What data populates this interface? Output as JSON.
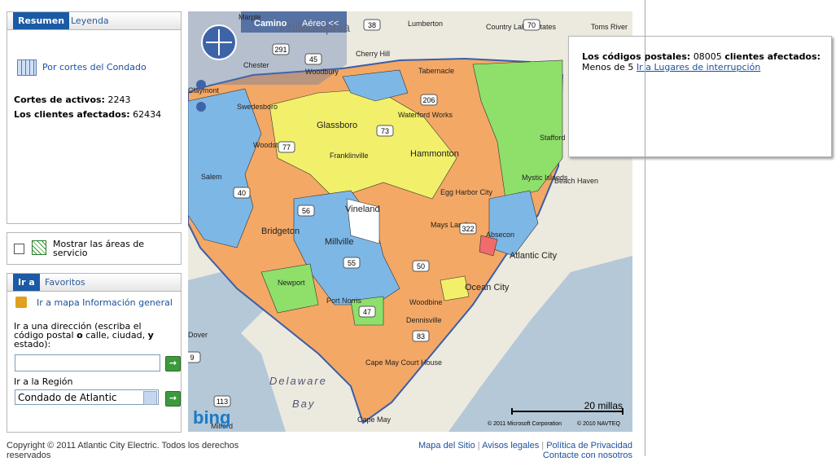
{
  "summary_panel": {
    "tabs": [
      "Resumen",
      "Leyenda"
    ],
    "county_link": "Por cortes del Condado",
    "outages_label": "Cortes de activos:",
    "outages_value": 2243,
    "customers_label": "Los clientes afectados:",
    "customers_value": 62434
  },
  "service_area": {
    "label": "Mostrar las áreas de servicio"
  },
  "goto_panel": {
    "tabs": [
      "Ir a",
      "Favoritos"
    ],
    "general_map_link": "Ir a mapa Información general",
    "address_label": [
      "Ir a una dirección (escriba el código postal ",
      "o",
      " calle, ciudad, ",
      "y",
      " estado):"
    ],
    "region_label": "Ir a la Región",
    "region_select": "Condado de Atlantic"
  },
  "map": {
    "view_tabs": [
      "Camino",
      "Aéreo <<"
    ],
    "places": [
      "Marple",
      "Philadelphia",
      "Lumberton",
      "Country Lake Estates",
      "Toms River",
      "Cherry Hill",
      "Chester",
      "Woodbury",
      "Tabernacle",
      "Glassboro",
      "Waterford Works",
      "Hammonton",
      "Franklinville",
      "Woodstown",
      "Salem",
      "Egg Harbor City",
      "Vineland",
      "Bridgeton",
      "Mays Landing",
      "Millville",
      "Absecon",
      "Atlantic City",
      "Ocean City",
      "Port Norris",
      "Woodbine",
      "Dennisville",
      "Cape May Court House",
      "Cape May",
      "Delaware",
      "Bay",
      "Milford",
      "Stafford",
      "Mystic Islands",
      "Beach Haven",
      "Newport",
      "Swedesboro",
      "Claymont",
      "Dover"
    ],
    "route_shields": [
      38,
      70,
      291,
      45,
      206,
      73,
      77,
      40,
      56,
      55,
      50,
      47,
      83,
      322,
      113,
      9
    ],
    "scale": "20 millas",
    "copyrights": [
      "© 2011 Microsoft Corporation",
      "© 2010 NAVTEQ"
    ],
    "logo": "bing"
  },
  "popup": {
    "zip_label": "Los códigos postales:",
    "zip_value": "08005",
    "customers_label": "clientes afectados:",
    "customers_value": "Menos de 5",
    "link": "Ir a Lugares de interrupción"
  },
  "footer": {
    "copyright": "Copyright © 2011 Atlantic City Electric. Todos los derechos reservados",
    "links": [
      "Mapa del Sitio",
      "Avisos legales",
      "Política de Privacidad",
      "Contacte con nosotros"
    ]
  }
}
